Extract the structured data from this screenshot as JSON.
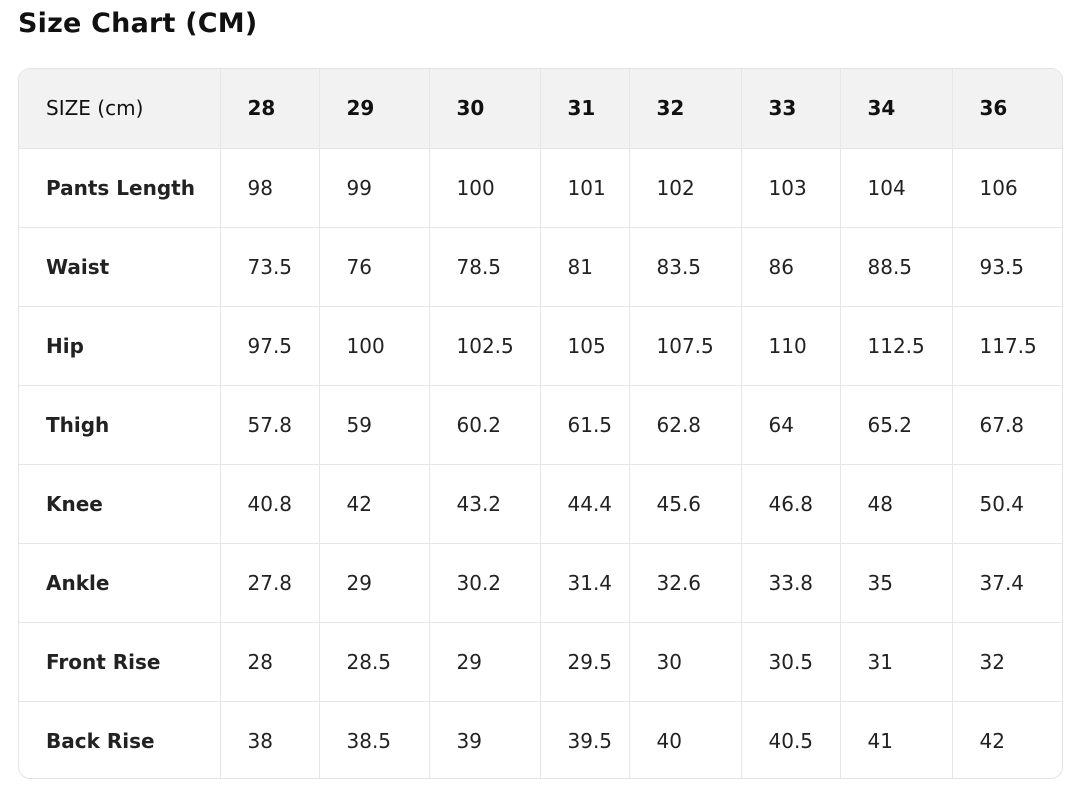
{
  "title": "Size Chart (CM)",
  "table": {
    "headers": [
      "SIZE (cm)",
      "28",
      "29",
      "30",
      "31",
      "32",
      "33",
      "34",
      "36"
    ],
    "rows": [
      [
        "Pants Length",
        "98",
        "99",
        "100",
        "101",
        "102",
        "103",
        "104",
        "106"
      ],
      [
        "Waist",
        "73.5",
        "76",
        "78.5",
        "81",
        "83.5",
        "86",
        "88.5",
        "93.5"
      ],
      [
        "Hip",
        "97.5",
        "100",
        "102.5",
        "105",
        "107.5",
        "110",
        "112.5",
        "117.5"
      ],
      [
        "Thigh",
        "57.8",
        "59",
        "60.2",
        "61.5",
        "62.8",
        "64",
        "65.2",
        "67.8"
      ],
      [
        "Knee",
        "40.8",
        "42",
        "43.2",
        "44.4",
        "45.6",
        "46.8",
        "48",
        "50.4"
      ],
      [
        "Ankle",
        "27.8",
        "29",
        "30.2",
        "31.4",
        "32.6",
        "33.8",
        "35",
        "37.4"
      ],
      [
        "Front Rise",
        "28",
        "28.5",
        "29",
        "29.5",
        "30",
        "30.5",
        "31",
        "32"
      ],
      [
        "Back Rise",
        "38",
        "38.5",
        "39",
        "39.5",
        "40",
        "40.5",
        "41",
        "42"
      ]
    ]
  }
}
